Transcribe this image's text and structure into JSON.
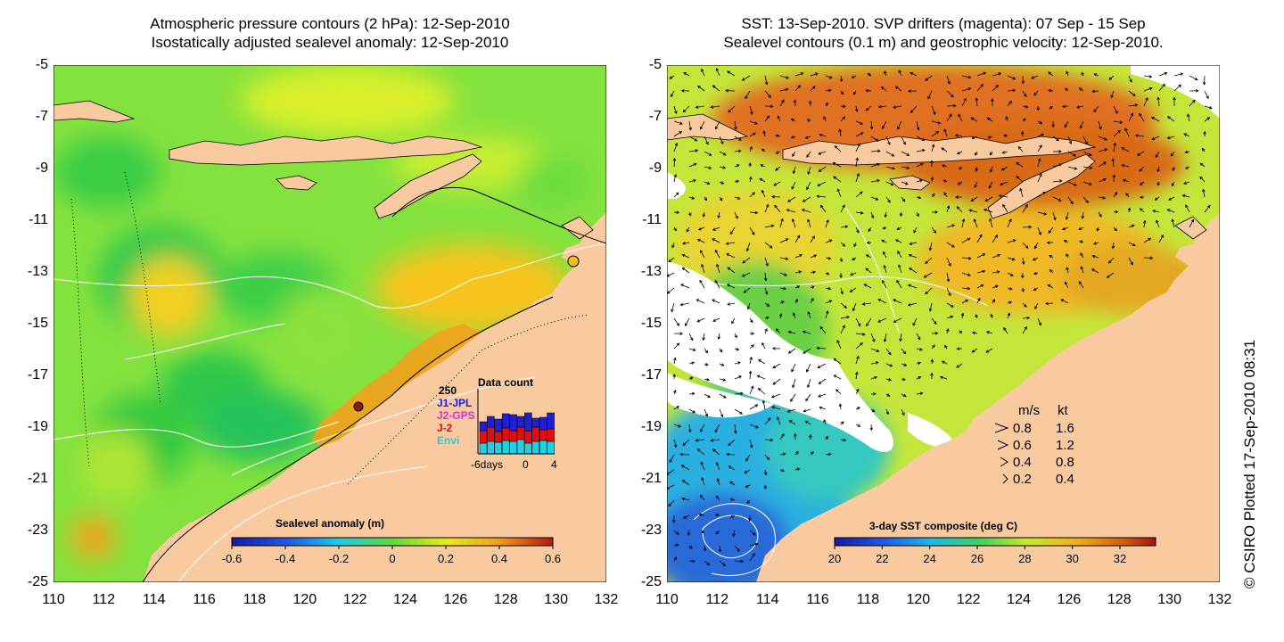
{
  "left_panel": {
    "title_line1": "Atmospheric pressure contours (2 hPa): 12-Sep-2010",
    "title_line2": "Isostatically adjusted sealevel anomaly: 12-Sep-2010",
    "colorbar": {
      "label": "Sealevel anomaly (m)",
      "ticks": [
        "-0.6",
        "-0.4",
        "-0.2",
        "0",
        "0.2",
        "0.4",
        "0.6"
      ],
      "range": [
        -0.6,
        0.6
      ]
    },
    "data_count_inset": {
      "title": "Data count",
      "ymax_label": "250",
      "missions": [
        {
          "name": "J1-JPL",
          "color": "#1f1fd6"
        },
        {
          "name": "J2-GPS",
          "color": "#d62fd6"
        },
        {
          "name": "J-2",
          "color": "#e01010"
        },
        {
          "name": "Envi",
          "color": "#22d0e0"
        }
      ],
      "x_labels": [
        "-6days",
        "0",
        "4"
      ]
    }
  },
  "right_panel": {
    "title_line1": "SST: 13-Sep-2010. SVP drifters (magenta): 07 Sep - 15 Sep",
    "title_line2": "Sealevel contours (0.1 m) and geostrophic velocity: 12-Sep-2010.",
    "colorbar": {
      "label": "3-day SST composite (deg C)",
      "ticks": [
        "20",
        "22",
        "24",
        "26",
        "28",
        "30",
        "32"
      ],
      "range": [
        20,
        33.5
      ]
    },
    "velocity_legend": {
      "header_ms": "m/s",
      "header_kt": "kt",
      "rows": [
        {
          "ms": "0.8",
          "kt": "1.6"
        },
        {
          "ms": "0.6",
          "kt": "1.2"
        },
        {
          "ms": "0.4",
          "kt": "0.8"
        },
        {
          "ms": "0.2",
          "kt": "0.4"
        }
      ]
    }
  },
  "axes": {
    "lat_labels": [
      "-5",
      "-7",
      "-9",
      "-11",
      "-13",
      "-15",
      "-17",
      "-19",
      "-21",
      "-23",
      "-25"
    ],
    "lon_labels": [
      "110",
      "112",
      "114",
      "116",
      "118",
      "120",
      "122",
      "124",
      "126",
      "128",
      "130",
      "132"
    ],
    "lat_range": [
      -25,
      -5
    ],
    "lon_range": [
      110,
      132
    ]
  },
  "credit": "© CSIRO Plotted 17-Sep-2010 08:31",
  "colors": {
    "land": "#f9c9a0",
    "ocean_anomaly_base": "#7fe040",
    "sst_base": "#c6e83a",
    "cloud": "#ffffff"
  }
}
